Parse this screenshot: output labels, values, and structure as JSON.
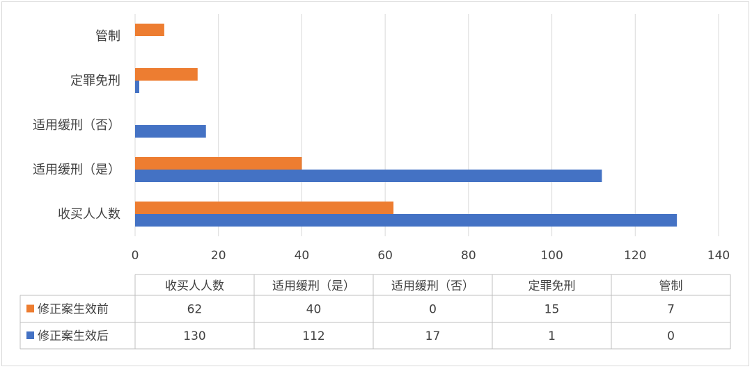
{
  "chart_data": {
    "type": "bar",
    "orientation": "horizontal",
    "categories": [
      "收买人人数",
      "适用缓刑（是）",
      "适用缓刑（否）",
      "定罪免刑",
      "管制"
    ],
    "series": [
      {
        "name": "修正案生效前",
        "values": [
          62,
          40,
          0,
          15,
          7
        ],
        "color": "#ED7D31"
      },
      {
        "name": "修正案生效后",
        "values": [
          130,
          112,
          17,
          1,
          0
        ],
        "color": "#4472C4"
      }
    ],
    "xlim": [
      0,
      140
    ],
    "xticks": [
      0,
      20,
      40,
      60,
      80,
      100,
      120,
      140
    ],
    "grid": true,
    "data_table": true
  }
}
